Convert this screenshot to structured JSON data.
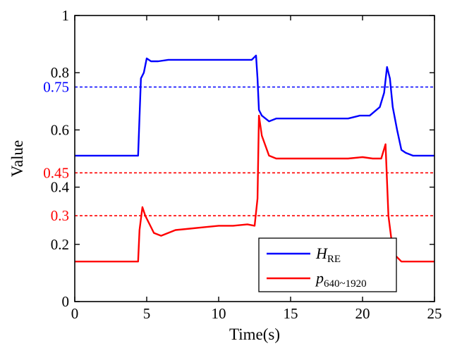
{
  "chart_data": {
    "type": "line",
    "title": "",
    "xlabel": "Time(s)",
    "ylabel": "Value",
    "xlim": [
      0,
      25
    ],
    "ylim": [
      0,
      1
    ],
    "xticks": [
      0,
      5,
      10,
      15,
      20,
      25
    ],
    "xtick_labels": [
      "0",
      "5",
      "10",
      "15",
      "20",
      "25"
    ],
    "yticks": [
      0,
      0.2,
      0.4,
      0.6,
      0.8,
      1
    ],
    "ytick_labels": [
      "0",
      "0.2",
      "0.4",
      "0.6",
      "0.8",
      "1"
    ],
    "series": [
      {
        "name": "H_RE",
        "legend_main": "H",
        "legend_sub": "RE",
        "color": "#0000ff",
        "x": [
          0,
          0.5,
          1,
          1.5,
          2,
          2.5,
          3,
          3.5,
          4,
          4.4,
          4.6,
          4.8,
          5.0,
          5.3,
          5.8,
          6.5,
          7.5,
          8.5,
          9.5,
          10.5,
          11.5,
          12.3,
          12.6,
          12.7,
          12.8,
          13.0,
          13.5,
          14,
          15,
          16,
          17,
          18,
          19,
          19.8,
          20.5,
          21.2,
          21.5,
          21.7,
          21.9,
          22.1,
          22.4,
          22.7,
          23.0,
          23.5,
          24,
          25
        ],
        "values": [
          0.51,
          0.51,
          0.51,
          0.51,
          0.51,
          0.51,
          0.51,
          0.51,
          0.51,
          0.51,
          0.78,
          0.8,
          0.85,
          0.84,
          0.84,
          0.845,
          0.845,
          0.845,
          0.845,
          0.845,
          0.845,
          0.845,
          0.86,
          0.78,
          0.67,
          0.65,
          0.63,
          0.64,
          0.64,
          0.64,
          0.64,
          0.64,
          0.64,
          0.65,
          0.65,
          0.68,
          0.73,
          0.82,
          0.78,
          0.68,
          0.6,
          0.53,
          0.52,
          0.51,
          0.51,
          0.51
        ]
      },
      {
        "name": "p_640~1920",
        "legend_main": "p",
        "legend_sub": "640~1920",
        "color": "#ff0000",
        "x": [
          0,
          0.5,
          1,
          1.5,
          2,
          2.5,
          3,
          3.5,
          4,
          4.4,
          4.5,
          4.7,
          4.9,
          5.2,
          5.5,
          6,
          7,
          8,
          9,
          10,
          11,
          12,
          12.5,
          12.7,
          12.8,
          13.0,
          13.5,
          14,
          15,
          16,
          17,
          18,
          19,
          20,
          20.7,
          21.3,
          21.6,
          21.8,
          22.0,
          22.3,
          22.7,
          23.5,
          24,
          25
        ],
        "values": [
          0.14,
          0.14,
          0.14,
          0.14,
          0.14,
          0.14,
          0.14,
          0.14,
          0.14,
          0.14,
          0.25,
          0.33,
          0.3,
          0.27,
          0.24,
          0.23,
          0.25,
          0.255,
          0.26,
          0.265,
          0.265,
          0.27,
          0.265,
          0.36,
          0.65,
          0.58,
          0.51,
          0.5,
          0.5,
          0.5,
          0.5,
          0.5,
          0.5,
          0.505,
          0.5,
          0.5,
          0.55,
          0.3,
          0.22,
          0.16,
          0.14,
          0.14,
          0.14,
          0.14
        ]
      }
    ],
    "reference_lines": [
      {
        "value": 0.75,
        "label": "0.75",
        "color": "#0000ff",
        "style": "dashed"
      },
      {
        "value": 0.45,
        "label": "0.45",
        "color": "#ff0000",
        "style": "dashed"
      },
      {
        "value": 0.3,
        "label": "0.3",
        "color": "#ff0000",
        "style": "dashed"
      }
    ],
    "legend_position": "bottom-right",
    "grid": false
  }
}
